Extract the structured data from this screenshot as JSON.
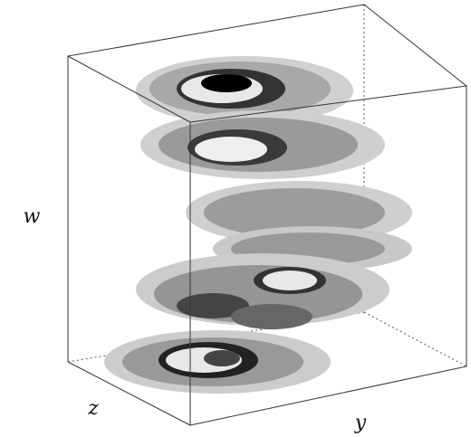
{
  "axes": {
    "vertical": "w",
    "depth": "z",
    "horizontal": "y"
  }
}
